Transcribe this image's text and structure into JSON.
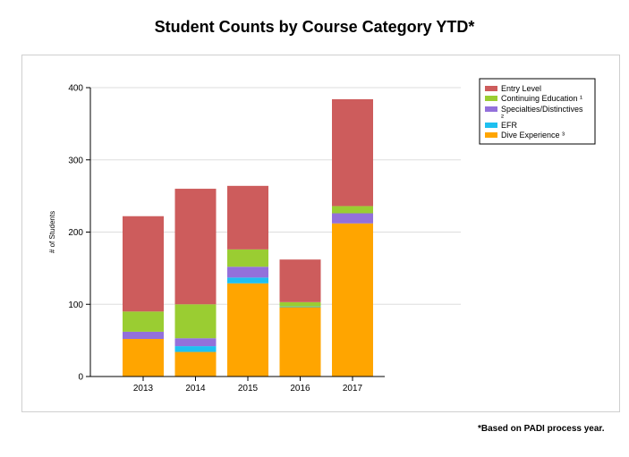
{
  "chart_data": {
    "type": "bar",
    "stacked": true,
    "title": "Student Counts by Course Category YTD*",
    "xlabel": "",
    "ylabel": "# of Students",
    "ylim": [
      0,
      400
    ],
    "yticks": [
      "0",
      "100",
      "200",
      "300",
      "400"
    ],
    "categories": [
      "2013",
      "2014",
      "2015",
      "2016",
      "2017"
    ],
    "grid": true,
    "legend_position": "top-right",
    "series": [
      {
        "name": "Dive Experience ³",
        "color": "#ffa500",
        "values": [
          52,
          34,
          129,
          96,
          212
        ]
      },
      {
        "name": "EFR",
        "color": "#1ec0f0",
        "values": [
          0,
          8,
          8,
          1,
          0
        ]
      },
      {
        "name": "Specialties/Distinctives ²",
        "color": "#9370db",
        "values": [
          10,
          11,
          15,
          0,
          14
        ]
      },
      {
        "name": "Continuing Education ¹",
        "color": "#9acd32",
        "values": [
          28,
          47,
          24,
          6,
          10
        ]
      },
      {
        "name": "Entry Level",
        "color": "#cd5c5c",
        "values": [
          132,
          160,
          88,
          59,
          148
        ]
      }
    ],
    "legend_order": [
      "Entry Level",
      "Continuing Education ¹",
      "Specialties/Distinctives ²",
      "EFR",
      "Dive Experience ³"
    ]
  },
  "footnote": "*Based on PADI process year."
}
